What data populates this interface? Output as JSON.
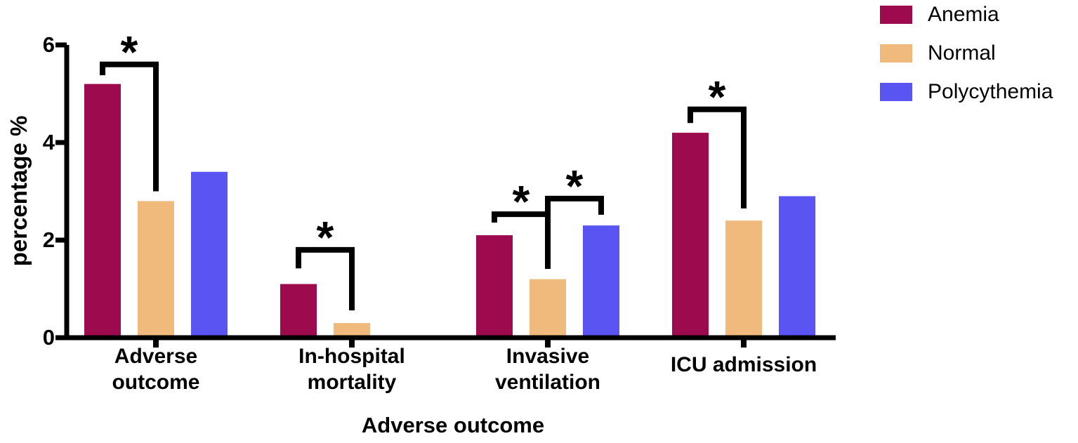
{
  "figure": {
    "background": "#ffffff",
    "axis_color": "#000000",
    "significance_marker": "*"
  },
  "chart_data": {
    "type": "bar",
    "title": "",
    "xlabel": "Adverse outcome",
    "ylabel": "percentage %",
    "ylim": [
      0,
      6
    ],
    "yticks": [
      0,
      2,
      4,
      6
    ],
    "grid": false,
    "legend_position": "top-right",
    "categories": [
      "Adverse outcome",
      "In-hospital mortality",
      "Invasive ventilation",
      "ICU admission"
    ],
    "category_label_lines": [
      [
        "Adverse",
        "outcome"
      ],
      [
        "In-hospital",
        "mortality"
      ],
      [
        "Invasive",
        "ventilation"
      ],
      [
        "ICU admission"
      ]
    ],
    "series": [
      {
        "name": "Anemia",
        "color": "#9e0a4e",
        "values": [
          5.2,
          1.1,
          2.1,
          4.2
        ]
      },
      {
        "name": "Normal",
        "color": "#f1ba7d",
        "values": [
          2.8,
          0.3,
          1.2,
          2.4
        ]
      },
      {
        "name": "Polycythemia",
        "color": "#5a55f2",
        "values": [
          3.4,
          null,
          2.3,
          2.9
        ]
      }
    ],
    "significance_brackets": [
      {
        "group": 0,
        "between": [
          "Anemia",
          "Normal"
        ],
        "label": "*",
        "top": 5.6,
        "leg1": 5.38,
        "leg2": 3.0
      },
      {
        "group": 1,
        "between": [
          "Anemia",
          "Normal"
        ],
        "label": "*",
        "top": 1.8,
        "leg1": 1.42,
        "leg2": 0.56
      },
      {
        "group": 2,
        "between": [
          "Anemia",
          "Normal"
        ],
        "label": "*",
        "top": 2.53,
        "leg1": 2.36,
        "leg2": 1.41
      },
      {
        "group": 2,
        "between": [
          "Normal",
          "Polycythemia"
        ],
        "label": "*",
        "top": 2.85,
        "leg1": 2.53,
        "leg2": 2.52
      },
      {
        "group": 3,
        "between": [
          "Anemia",
          "Normal"
        ],
        "label": "*",
        "top": 4.68,
        "leg1": 4.4,
        "leg2": 2.65
      }
    ]
  }
}
